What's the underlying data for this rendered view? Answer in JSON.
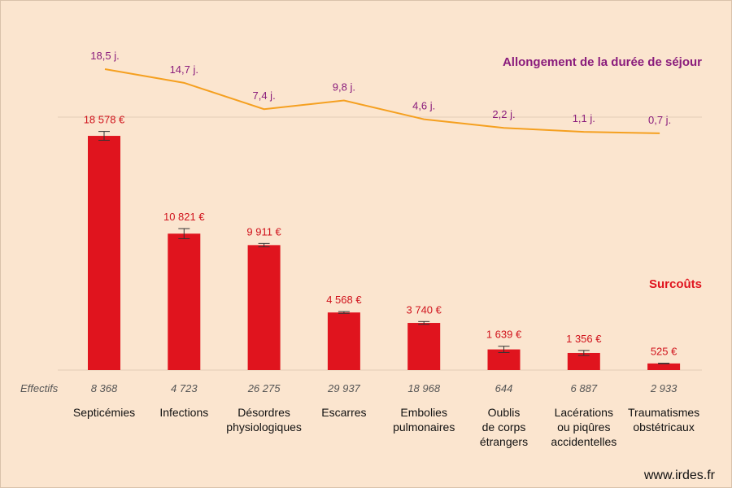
{
  "colors": {
    "background": "#fbe5cf",
    "bar": "#e0141e",
    "bar_label": "#d0131c",
    "line": "#f5a020",
    "line_label": "#8a1c7c",
    "grid": "#e3cdb7"
  },
  "chart_data": {
    "type": "bar",
    "categories": [
      [
        "Septicémies"
      ],
      [
        "Infections"
      ],
      [
        "Désordres",
        "physiologiques"
      ],
      [
        "Escarres"
      ],
      [
        "Embolies",
        "pulmonaires"
      ],
      [
        "Oublis",
        "de corps",
        "étrangers"
      ],
      [
        "Lacérations",
        "ou piqûres",
        "accidentelles"
      ],
      [
        "Traumatismes",
        "obstétricaux"
      ]
    ],
    "series": [
      {
        "name": "Surcoûts",
        "values": [
          18578,
          10821,
          9911,
          4568,
          3740,
          1639,
          1356,
          525
        ],
        "labels": [
          "18 578 €",
          "10 821 €",
          "9 911 €",
          "4 568 €",
          "3 740 €",
          "1 639 €",
          "1 356 €",
          "525 €"
        ],
        "error": [
          350,
          400,
          130,
          70,
          110,
          250,
          200,
          20
        ]
      },
      {
        "name": "Allongement de la durée de séjour",
        "type": "line",
        "values": [
          18.5,
          14.7,
          7.4,
          9.8,
          4.6,
          2.2,
          1.1,
          0.7
        ],
        "labels": [
          "18,5 j.",
          "14,7 j.",
          "7,4 j.",
          "9,8 j.",
          "4,6 j.",
          "2,2 j.",
          "1,1 j.",
          "0,7 j."
        ]
      }
    ],
    "effectifs_label": "Effectifs",
    "effectifs": [
      "8 368",
      "4 723",
      "26 275",
      "29 937",
      "18 968",
      "644",
      "6 887",
      "2 933"
    ],
    "ylim_bars": [
      0,
      20000
    ],
    "ylim_line": [
      0,
      20
    ],
    "grid": false
  },
  "footer": "www.irdes.fr"
}
